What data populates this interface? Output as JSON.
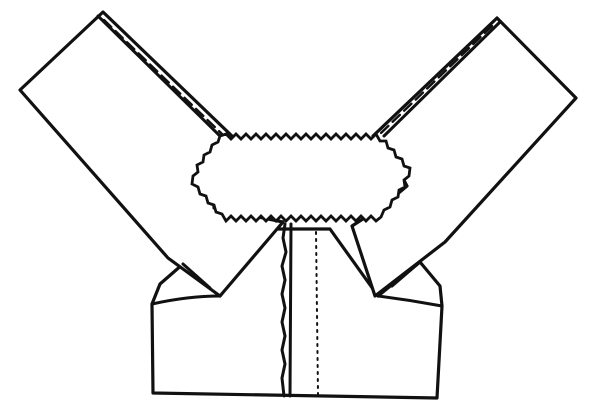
{
  "colors": {
    "ink": "#111111",
    "paper": "#ffffff"
  }
}
